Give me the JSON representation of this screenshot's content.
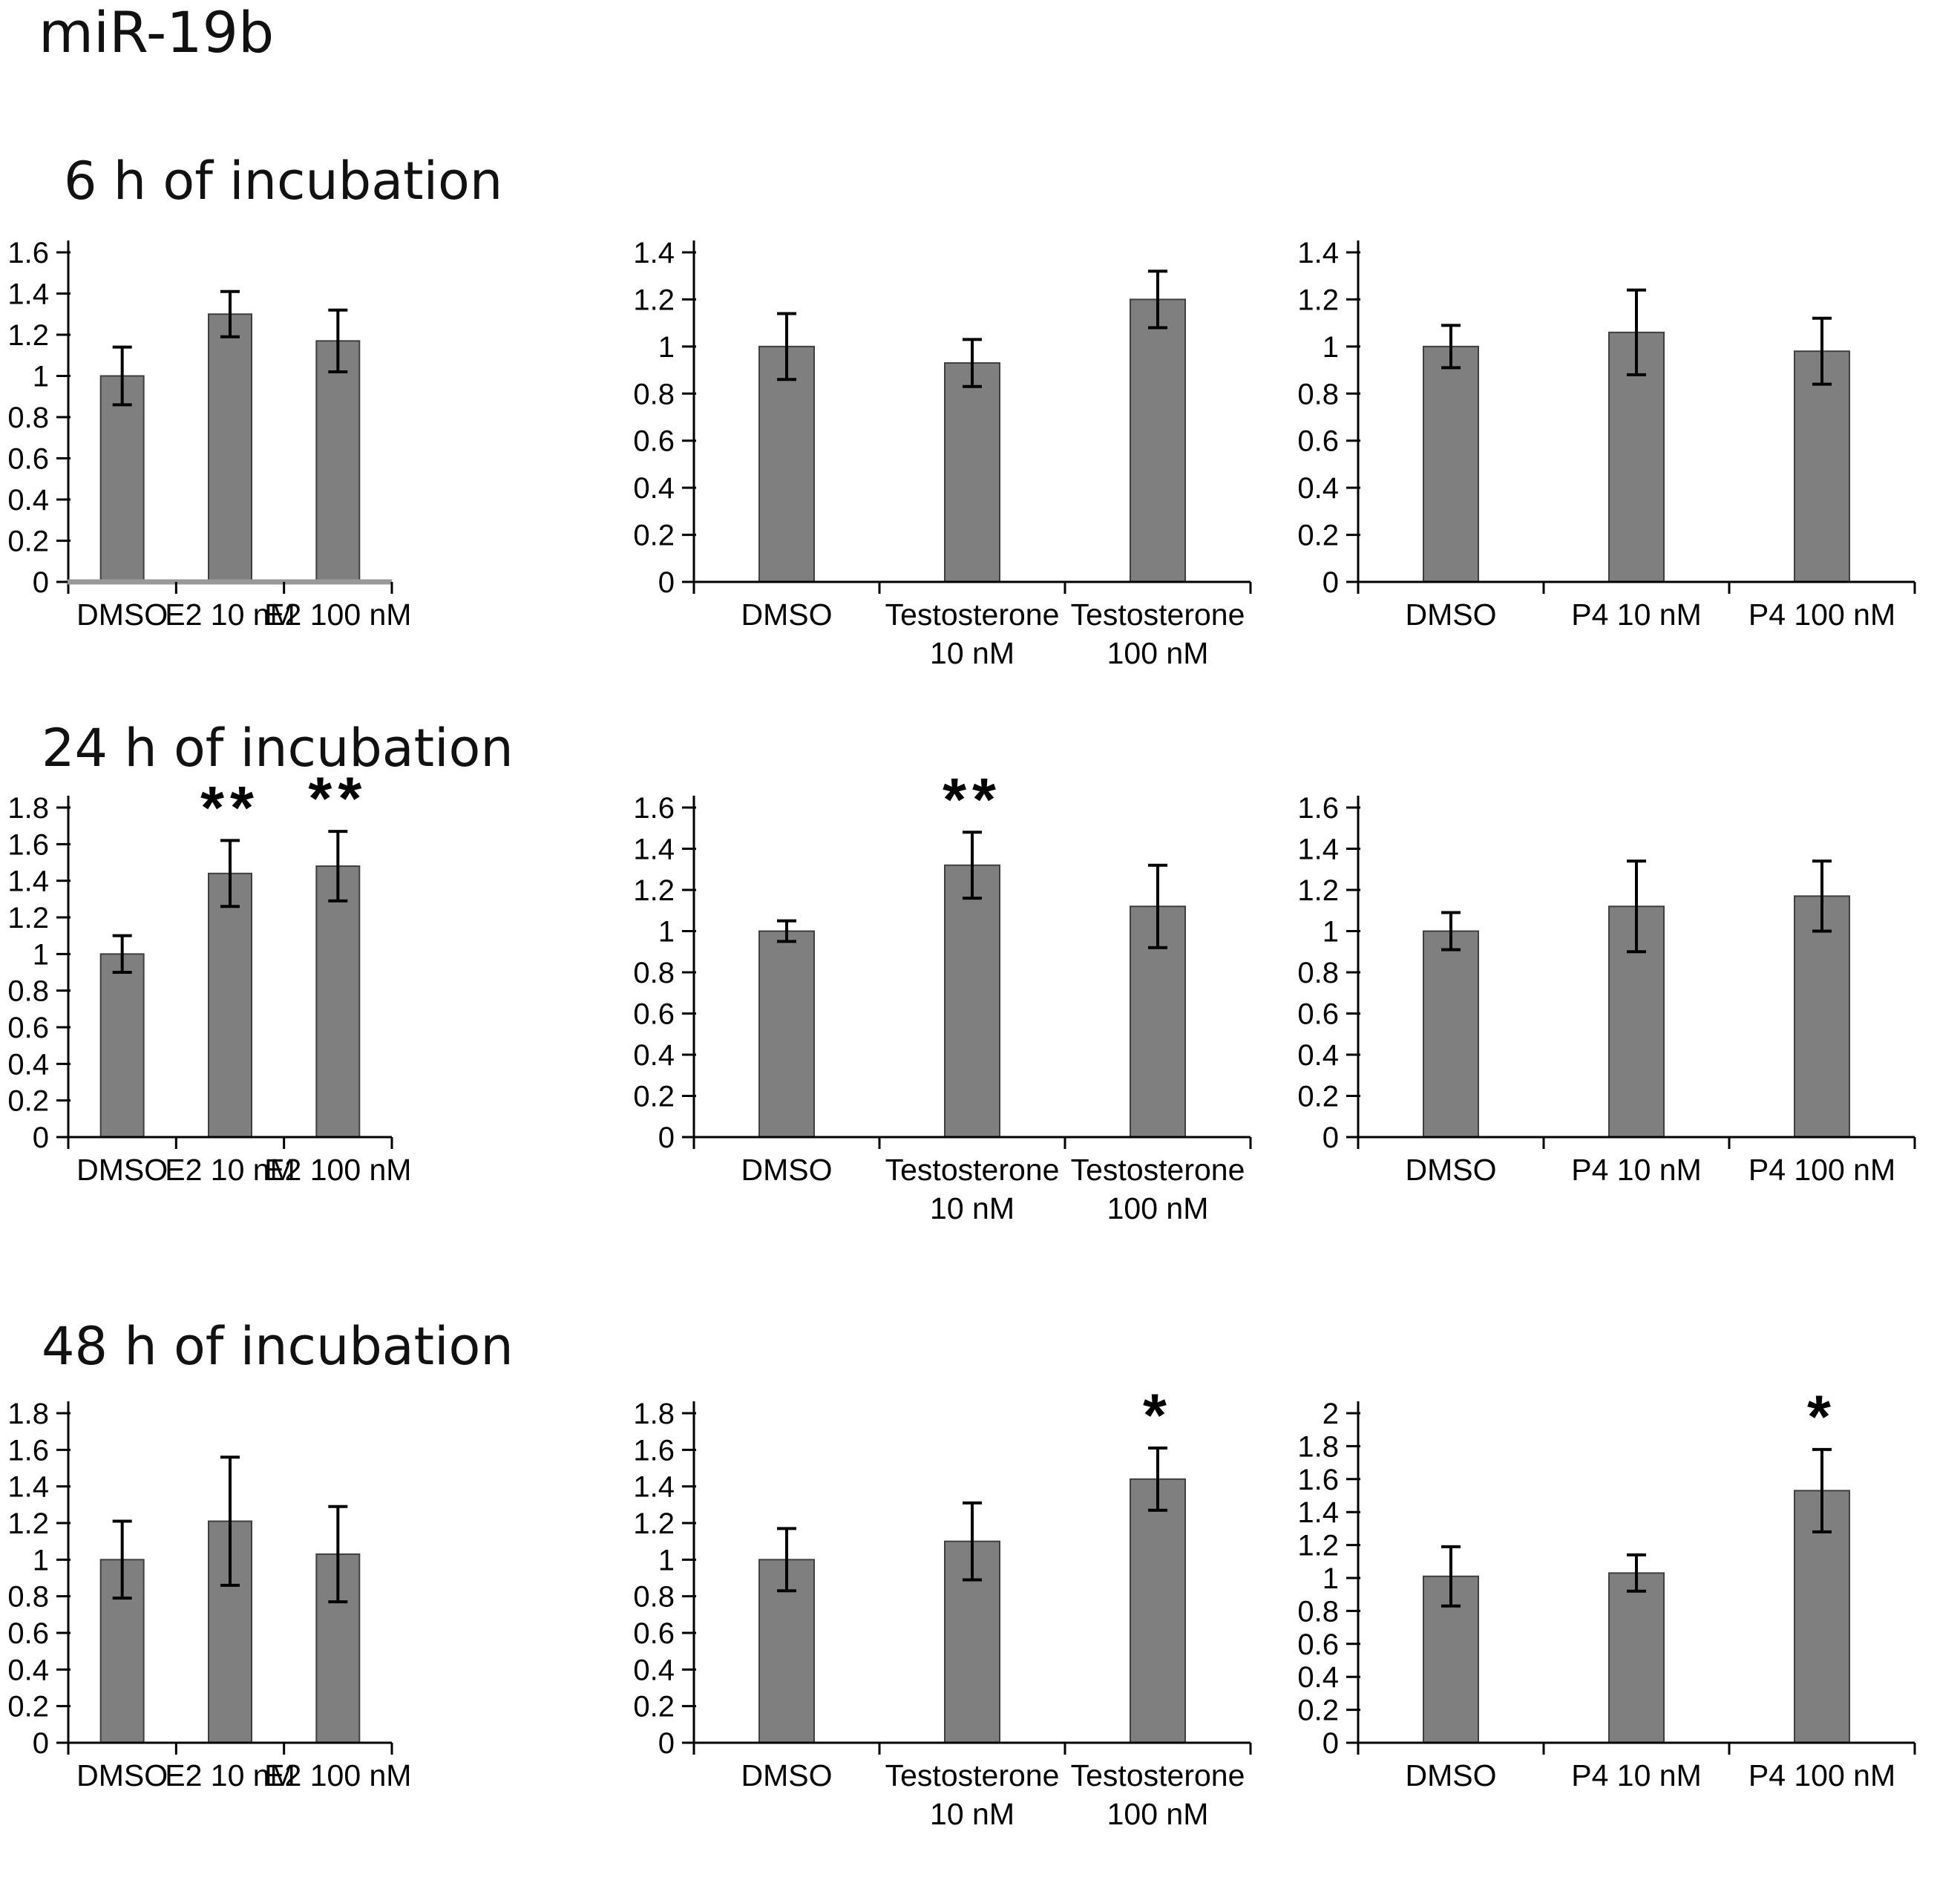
{
  "page": {
    "title": "miR-19b"
  },
  "sections": [
    {
      "header": "6 h of incubation"
    },
    {
      "header": "24 h of incubation"
    },
    {
      "header": "48 h of incubation"
    }
  ],
  "colors": {
    "bar_fill": "#7f7f7f",
    "bar_border": "#3f3f3f",
    "axis": "#000000",
    "text": "#000000",
    "first_chart_baseline": "#999999"
  },
  "chart_data": [
    {
      "type": "bar",
      "section": "6 h of incubation",
      "treatment": "E2",
      "categories": [
        "DMSO",
        "E2 10 nM",
        "E2 100 nM"
      ],
      "values": [
        1.0,
        1.3,
        1.17
      ],
      "errors": [
        0.14,
        0.11,
        0.15
      ],
      "significance": [
        "",
        "",
        ""
      ],
      "ylim": [
        0,
        1.6
      ],
      "ytick_step": 0.2,
      "grid": false,
      "legend": false,
      "baseline_color": "#999999"
    },
    {
      "type": "bar",
      "section": "6 h of incubation",
      "treatment": "Testosterone",
      "categories": [
        "DMSO",
        "Testosterone\n10 nM",
        "Testosterone\n100 nM"
      ],
      "values": [
        1.0,
        0.93,
        1.2
      ],
      "errors": [
        0.14,
        0.1,
        0.12
      ],
      "significance": [
        "",
        "",
        ""
      ],
      "ylim": [
        0,
        1.4
      ],
      "ytick_step": 0.2,
      "grid": false,
      "legend": false,
      "baseline_color": "#000000"
    },
    {
      "type": "bar",
      "section": "6 h of incubation",
      "treatment": "P4",
      "categories": [
        "DMSO",
        "P4 10 nM",
        "P4 100 nM"
      ],
      "values": [
        1.0,
        1.06,
        0.98
      ],
      "errors": [
        0.09,
        0.18,
        0.14
      ],
      "significance": [
        "",
        "",
        ""
      ],
      "ylim": [
        0,
        1.4
      ],
      "ytick_step": 0.2,
      "grid": false,
      "legend": false,
      "baseline_color": "#000000"
    },
    {
      "type": "bar",
      "section": "24 h of incubation",
      "treatment": "E2",
      "categories": [
        "DMSO",
        "E2 10 nM",
        "E2 100 nM"
      ],
      "values": [
        1.0,
        1.44,
        1.48
      ],
      "errors": [
        0.1,
        0.18,
        0.19
      ],
      "significance": [
        "",
        "**",
        "**"
      ],
      "ylim": [
        0,
        1.8
      ],
      "ytick_step": 0.2,
      "grid": false,
      "legend": false,
      "baseline_color": "#000000"
    },
    {
      "type": "bar",
      "section": "24 h of incubation",
      "treatment": "Testosterone",
      "categories": [
        "DMSO",
        "Testosterone\n10 nM",
        "Testosterone\n100 nM"
      ],
      "values": [
        1.0,
        1.32,
        1.12
      ],
      "errors": [
        0.05,
        0.16,
        0.2
      ],
      "significance": [
        "",
        "**",
        ""
      ],
      "ylim": [
        0,
        1.6
      ],
      "ytick_step": 0.2,
      "grid": false,
      "legend": false,
      "baseline_color": "#000000"
    },
    {
      "type": "bar",
      "section": "24 h of incubation",
      "treatment": "P4",
      "categories": [
        "DMSO",
        "P4 10 nM",
        "P4 100 nM"
      ],
      "values": [
        1.0,
        1.12,
        1.17
      ],
      "errors": [
        0.09,
        0.22,
        0.17
      ],
      "significance": [
        "",
        "",
        ""
      ],
      "ylim": [
        0,
        1.6
      ],
      "ytick_step": 0.2,
      "grid": false,
      "legend": false,
      "baseline_color": "#000000"
    },
    {
      "type": "bar",
      "section": "48 h of incubation",
      "treatment": "E2",
      "categories": [
        "DMSO",
        "E2 10 nM",
        "E2 100 nM"
      ],
      "values": [
        1.0,
        1.21,
        1.03
      ],
      "errors": [
        0.21,
        0.35,
        0.26
      ],
      "significance": [
        "",
        "",
        ""
      ],
      "ylim": [
        0,
        1.8
      ],
      "ytick_step": 0.2,
      "grid": false,
      "legend": false,
      "baseline_color": "#000000"
    },
    {
      "type": "bar",
      "section": "48 h of incubation",
      "treatment": "Testosterone",
      "categories": [
        "DMSO",
        "Testosterone\n10 nM",
        "Testosterone\n100 nM"
      ],
      "values": [
        1.0,
        1.1,
        1.44
      ],
      "errors": [
        0.17,
        0.21,
        0.17
      ],
      "significance": [
        "",
        "",
        "*"
      ],
      "ylim": [
        0,
        1.8
      ],
      "ytick_step": 0.2,
      "grid": false,
      "legend": false,
      "baseline_color": "#000000"
    },
    {
      "type": "bar",
      "section": "48 h of incubation",
      "treatment": "P4",
      "categories": [
        "DMSO",
        "P4 10 nM",
        "P4 100 nM"
      ],
      "values": [
        1.01,
        1.03,
        1.53
      ],
      "errors": [
        0.18,
        0.11,
        0.25
      ],
      "significance": [
        "",
        "",
        "*"
      ],
      "ylim": [
        0,
        2.0
      ],
      "ytick_step": 0.2,
      "grid": false,
      "legend": false,
      "baseline_color": "#000000"
    }
  ]
}
